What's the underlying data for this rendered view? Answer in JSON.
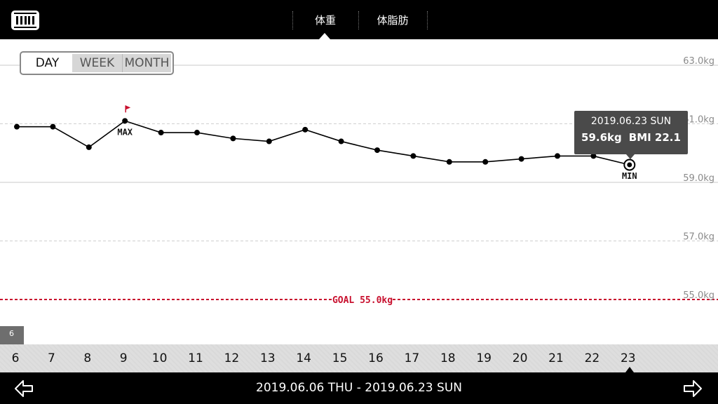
{
  "header": {
    "tabs": [
      {
        "label": "体重",
        "active": true
      },
      {
        "label": "体脂肪",
        "active": false
      }
    ]
  },
  "period_selector": {
    "options": [
      "DAY",
      "WEEK",
      "MONTH"
    ],
    "selected": "DAY"
  },
  "chart_data": {
    "type": "line",
    "x": [
      6,
      7,
      8,
      9,
      10,
      11,
      12,
      13,
      14,
      15,
      16,
      17,
      18,
      19,
      20,
      21,
      22,
      23
    ],
    "series": [
      {
        "values": [
          60.9,
          60.9,
          60.2,
          61.1,
          60.7,
          60.7,
          60.5,
          60.4,
          60.8,
          60.4,
          60.1,
          59.9,
          59.7,
          59.7,
          59.8,
          59.9,
          59.9,
          59.6
        ]
      }
    ],
    "ylim": [
      53.4,
      64.2
    ],
    "y_ticks": [
      {
        "value": 63.0,
        "label": "63.0kg",
        "style": "solid"
      },
      {
        "value": 61.0,
        "label": "61.0kg",
        "style": "dashed"
      },
      {
        "value": 59.0,
        "label": "59.0kg",
        "style": "solid"
      },
      {
        "value": 57.0,
        "label": "57.0kg",
        "style": "dashed"
      },
      {
        "value": 55.0,
        "label": "55.0kg",
        "style": "goal"
      }
    ],
    "goal": {
      "value": 55.0,
      "label": "GOAL 55.0kg",
      "color": "#c8102e"
    },
    "max": {
      "x": 9,
      "label": "MAX"
    },
    "min": {
      "x": 23,
      "label": "MIN"
    },
    "grid": true,
    "first_day_badge": "6"
  },
  "tooltip": {
    "date": "2019.06.23 SUN",
    "weight": "59.6kg",
    "bmi": "BMI 22.1"
  },
  "footer": {
    "range": "2019.06.06 THU - 2019.06.23 SUN",
    "prev_icon": "arrow-left-icon",
    "next_icon": "arrow-right-icon"
  },
  "colors": {
    "accent": "#c8102e",
    "line": "#000000",
    "grid": "#c8c8c8",
    "tick_label": "#8a8a8a"
  }
}
